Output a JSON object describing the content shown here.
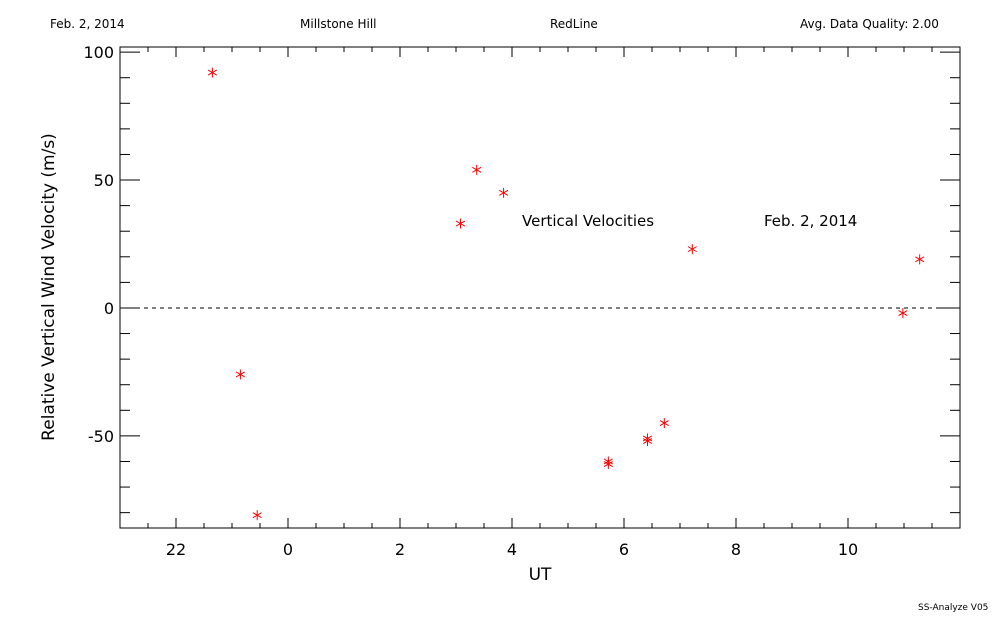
{
  "header": {
    "date": "Feb. 2, 2014",
    "site": "Millstone Hill",
    "filter": "RedLine",
    "quality": "Avg. Data Quality: 2.00"
  },
  "footer": {
    "software": "SS-Analyze V05"
  },
  "chart_data": {
    "type": "scatter",
    "xlabel": "UT",
    "ylabel": "Relative Vertical Wind Velocity (m/s)",
    "annotations": [
      "Vertical Velocities",
      "Feb. 2, 2014"
    ],
    "xlim": [
      21.0,
      36.0
    ],
    "ylim": [
      -86,
      102
    ],
    "x_ticks": [
      22,
      24,
      26,
      28,
      30,
      32,
      34
    ],
    "x_tick_labels": [
      "22",
      "0",
      "2",
      "4",
      "6",
      "8",
      "10"
    ],
    "y_ticks": [
      -50,
      0,
      50,
      100
    ],
    "y_tick_labels": [
      "-50",
      "0",
      "50",
      "100"
    ],
    "zero_line": "dashed",
    "grid": false,
    "marker": "asterisk",
    "color": "#ff0000",
    "series": [
      {
        "x": [
          22.65,
          23.15,
          23.45,
          27.08,
          27.37,
          27.85,
          29.72,
          29.72,
          30.42,
          30.42,
          30.72,
          31.22,
          34.98,
          35.28
        ],
        "values": [
          92,
          -26,
          -81,
          33,
          54,
          45,
          -60,
          -61,
          -51,
          -52,
          -45,
          23,
          -2,
          19
        ]
      }
    ]
  }
}
